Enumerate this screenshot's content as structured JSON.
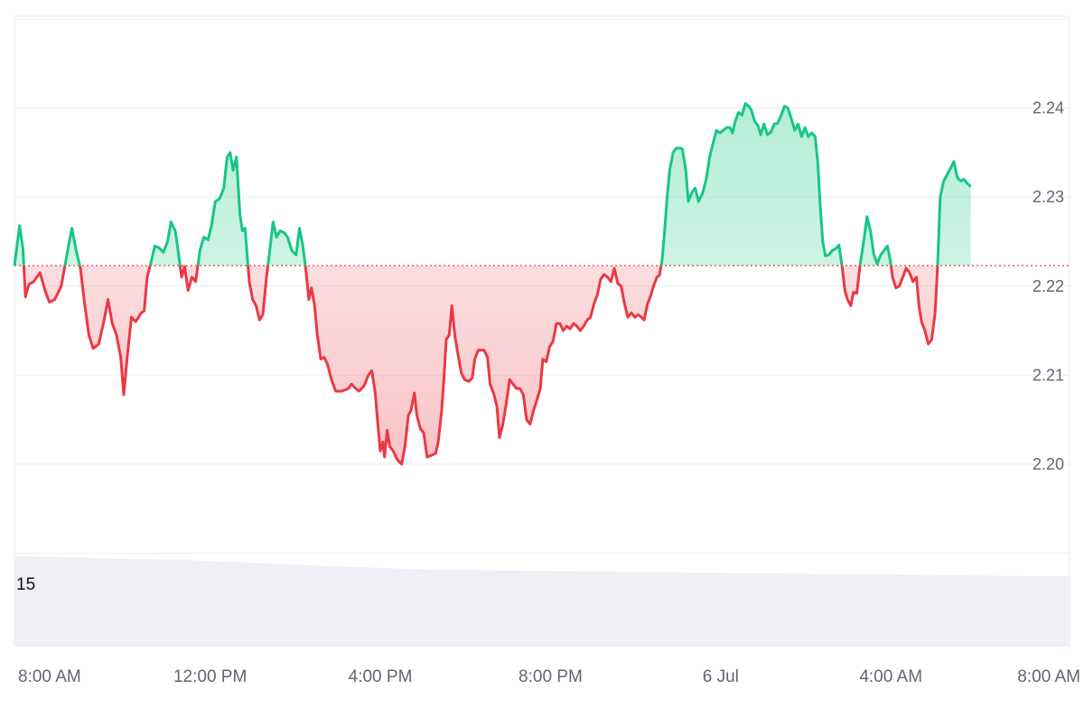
{
  "chart_data": {
    "type": "line",
    "baseline": 2.2223,
    "ylim": [
      2.18,
      2.25
    ],
    "grid": true,
    "colors": {
      "up": "#16c784",
      "down": "#ea3943",
      "up_fill": "#16c784",
      "down_fill": "#ea3943",
      "grid": "#eceef2",
      "volume": "#eef0f5",
      "baseline": "#ea3943"
    },
    "y_ticks": [
      {
        "value": 2.24,
        "label": "2.24"
      },
      {
        "value": 2.23,
        "label": "2.23"
      },
      {
        "value": 2.22,
        "label": "2.22"
      },
      {
        "value": 2.21,
        "label": "2.21"
      },
      {
        "value": 2.2,
        "label": "2.20"
      }
    ],
    "x_ticks": [
      {
        "t": 0.6,
        "label": "8:00 AM"
      },
      {
        "t": 4.6,
        "label": "12:00 PM"
      },
      {
        "t": 8.6,
        "label": "4:00 PM"
      },
      {
        "t": 12.6,
        "label": "8:00 PM"
      },
      {
        "t": 16.6,
        "label": "6 Jul"
      },
      {
        "t": 20.6,
        "label": "4:00 AM"
      },
      {
        "t": 24.6,
        "label": "8:00 AM"
      }
    ],
    "t_range": [
      0,
      24.8
    ],
    "volume": {
      "label": "15",
      "points": [
        [
          0,
          1.0
        ],
        [
          2,
          0.98
        ],
        [
          4,
          0.96
        ],
        [
          6,
          0.92
        ],
        [
          8,
          0.88
        ],
        [
          10,
          0.85
        ],
        [
          12,
          0.84
        ],
        [
          14,
          0.83
        ],
        [
          16,
          0.82
        ],
        [
          18,
          0.81
        ],
        [
          20,
          0.8
        ],
        [
          22,
          0.79
        ],
        [
          24,
          0.78
        ],
        [
          24.8,
          0.78
        ]
      ]
    },
    "series": [
      {
        "values": [
          [
            0.0,
            2.2223
          ],
          [
            0.06,
            2.2245
          ],
          [
            0.12,
            2.2268
          ],
          [
            0.2,
            2.2242
          ],
          [
            0.26,
            2.2188
          ],
          [
            0.34,
            2.2202
          ],
          [
            0.45,
            2.2205
          ],
          [
            0.6,
            2.2215
          ],
          [
            0.72,
            2.2195
          ],
          [
            0.82,
            2.2182
          ],
          [
            0.95,
            2.2185
          ],
          [
            1.1,
            2.22
          ],
          [
            1.25,
            2.224
          ],
          [
            1.35,
            2.2265
          ],
          [
            1.45,
            2.224
          ],
          [
            1.55,
            2.222
          ],
          [
            1.65,
            2.218
          ],
          [
            1.75,
            2.2145
          ],
          [
            1.85,
            2.213
          ],
          [
            1.98,
            2.2135
          ],
          [
            2.1,
            2.216
          ],
          [
            2.2,
            2.2185
          ],
          [
            2.3,
            2.2158
          ],
          [
            2.4,
            2.2145
          ],
          [
            2.5,
            2.212
          ],
          [
            2.57,
            2.2078
          ],
          [
            2.65,
            2.212
          ],
          [
            2.75,
            2.2165
          ],
          [
            2.85,
            2.216
          ],
          [
            2.98,
            2.217
          ],
          [
            3.05,
            2.2172
          ],
          [
            3.12,
            2.221
          ],
          [
            3.2,
            2.2225
          ],
          [
            3.3,
            2.2245
          ],
          [
            3.4,
            2.2243
          ],
          [
            3.5,
            2.2238
          ],
          [
            3.6,
            2.225
          ],
          [
            3.68,
            2.2272
          ],
          [
            3.78,
            2.2262
          ],
          [
            3.86,
            2.2235
          ],
          [
            3.93,
            2.221
          ],
          [
            4.0,
            2.2222
          ],
          [
            4.08,
            2.2195
          ],
          [
            4.17,
            2.221
          ],
          [
            4.26,
            2.2205
          ],
          [
            4.36,
            2.224
          ],
          [
            4.45,
            2.2255
          ],
          [
            4.55,
            2.2252
          ],
          [
            4.63,
            2.2268
          ],
          [
            4.72,
            2.2295
          ],
          [
            4.82,
            2.2298
          ],
          [
            4.92,
            2.231
          ],
          [
            5.0,
            2.2345
          ],
          [
            5.07,
            2.235
          ],
          [
            5.14,
            2.233
          ],
          [
            5.22,
            2.2345
          ],
          [
            5.3,
            2.228
          ],
          [
            5.36,
            2.2262
          ],
          [
            5.42,
            2.2265
          ],
          [
            5.48,
            2.2228
          ],
          [
            5.52,
            2.2205
          ],
          [
            5.6,
            2.2185
          ],
          [
            5.68,
            2.2178
          ],
          [
            5.76,
            2.2162
          ],
          [
            5.84,
            2.2168
          ],
          [
            5.92,
            2.2208
          ],
          [
            6.0,
            2.224
          ],
          [
            6.08,
            2.2272
          ],
          [
            6.16,
            2.2255
          ],
          [
            6.24,
            2.2262
          ],
          [
            6.34,
            2.226
          ],
          [
            6.42,
            2.2255
          ],
          [
            6.52,
            2.224
          ],
          [
            6.62,
            2.2235
          ],
          [
            6.7,
            2.2265
          ],
          [
            6.78,
            2.2245
          ],
          [
            6.85,
            2.2218
          ],
          [
            6.92,
            2.2185
          ],
          [
            6.98,
            2.2198
          ],
          [
            7.05,
            2.218
          ],
          [
            7.12,
            2.2145
          ],
          [
            7.2,
            2.2118
          ],
          [
            7.28,
            2.212
          ],
          [
            7.36,
            2.2112
          ],
          [
            7.45,
            2.2095
          ],
          [
            7.55,
            2.2082
          ],
          [
            7.7,
            2.2082
          ],
          [
            7.85,
            2.2085
          ],
          [
            7.92,
            2.209
          ],
          [
            8.02,
            2.2085
          ],
          [
            8.1,
            2.2082
          ],
          [
            8.22,
            2.2088
          ],
          [
            8.32,
            2.21
          ],
          [
            8.4,
            2.2105
          ],
          [
            8.48,
            2.208
          ],
          [
            8.55,
            2.204
          ],
          [
            8.6,
            2.2015
          ],
          [
            8.66,
            2.2025
          ],
          [
            8.7,
            2.2008
          ],
          [
            8.76,
            2.2038
          ],
          [
            8.82,
            2.202
          ],
          [
            8.9,
            2.2015
          ],
          [
            9.0,
            2.2005
          ],
          [
            9.1,
            2.2
          ],
          [
            9.18,
            2.202
          ],
          [
            9.26,
            2.2055
          ],
          [
            9.32,
            2.206
          ],
          [
            9.4,
            2.208
          ],
          [
            9.46,
            2.2055
          ],
          [
            9.54,
            2.204
          ],
          [
            9.62,
            2.2035
          ],
          [
            9.7,
            2.2008
          ],
          [
            9.8,
            2.201
          ],
          [
            9.9,
            2.2012
          ],
          [
            9.96,
            2.2025
          ],
          [
            10.04,
            2.206
          ],
          [
            10.1,
            2.21
          ],
          [
            10.15,
            2.214
          ],
          [
            10.22,
            2.2145
          ],
          [
            10.28,
            2.2178
          ],
          [
            10.35,
            2.2145
          ],
          [
            10.42,
            2.2125
          ],
          [
            10.5,
            2.2103
          ],
          [
            10.58,
            2.2095
          ],
          [
            10.68,
            2.2093
          ],
          [
            10.76,
            2.2097
          ],
          [
            10.82,
            2.2118
          ],
          [
            10.9,
            2.2128
          ],
          [
            11.04,
            2.2128
          ],
          [
            11.12,
            2.212
          ],
          [
            11.18,
            2.209
          ],
          [
            11.26,
            2.208
          ],
          [
            11.34,
            2.2065
          ],
          [
            11.4,
            2.203
          ],
          [
            11.48,
            2.2045
          ],
          [
            11.56,
            2.2068
          ],
          [
            11.64,
            2.2095
          ],
          [
            11.72,
            2.209
          ],
          [
            11.8,
            2.2085
          ],
          [
            11.88,
            2.2085
          ],
          [
            11.96,
            2.2078
          ],
          [
            12.04,
            2.205
          ],
          [
            12.12,
            2.2045
          ],
          [
            12.2,
            2.206
          ],
          [
            12.28,
            2.2072
          ],
          [
            12.36,
            2.2085
          ],
          [
            12.42,
            2.2118
          ],
          [
            12.5,
            2.2115
          ],
          [
            12.58,
            2.2132
          ],
          [
            12.66,
            2.2138
          ],
          [
            12.74,
            2.2158
          ],
          [
            12.82,
            2.2158
          ],
          [
            12.9,
            2.215
          ],
          [
            12.98,
            2.2155
          ],
          [
            13.06,
            2.2152
          ],
          [
            13.14,
            2.2158
          ],
          [
            13.22,
            2.2155
          ],
          [
            13.3,
            2.215
          ],
          [
            13.38,
            2.2155
          ],
          [
            13.46,
            2.2162
          ],
          [
            13.54,
            2.2165
          ],
          [
            13.62,
            2.218
          ],
          [
            13.7,
            2.219
          ],
          [
            13.78,
            2.2208
          ],
          [
            13.86,
            2.2213
          ],
          [
            13.94,
            2.221
          ],
          [
            14.02,
            2.2205
          ],
          [
            14.1,
            2.222
          ],
          [
            14.18,
            2.2203
          ],
          [
            14.26,
            2.22
          ],
          [
            14.34,
            2.218
          ],
          [
            14.42,
            2.2165
          ],
          [
            14.5,
            2.217
          ],
          [
            14.58,
            2.2165
          ],
          [
            14.66,
            2.2168
          ],
          [
            14.74,
            2.2165
          ],
          [
            14.8,
            2.2162
          ],
          [
            14.88,
            2.218
          ],
          [
            14.96,
            2.219
          ],
          [
            15.02,
            2.22
          ],
          [
            15.1,
            2.221
          ],
          [
            15.16,
            2.2212
          ],
          [
            15.22,
            2.2228
          ],
          [
            15.28,
            2.226
          ],
          [
            15.34,
            2.23
          ],
          [
            15.4,
            2.233
          ],
          [
            15.48,
            2.235
          ],
          [
            15.56,
            2.2355
          ],
          [
            15.64,
            2.2355
          ],
          [
            15.7,
            2.2354
          ],
          [
            15.78,
            2.233
          ],
          [
            15.84,
            2.2295
          ],
          [
            15.92,
            2.2305
          ],
          [
            16.0,
            2.231
          ],
          [
            16.08,
            2.2295
          ],
          [
            16.18,
            2.2305
          ],
          [
            16.26,
            2.232
          ],
          [
            16.34,
            2.2345
          ],
          [
            16.42,
            2.236
          ],
          [
            16.5,
            2.2375
          ],
          [
            16.58,
            2.2372
          ],
          [
            16.66,
            2.2375
          ],
          [
            16.74,
            2.2378
          ],
          [
            16.82,
            2.2378
          ],
          [
            16.88,
            2.2372
          ],
          [
            16.94,
            2.2385
          ],
          [
            17.02,
            2.2395
          ],
          [
            17.1,
            2.2392
          ],
          [
            17.18,
            2.2405
          ],
          [
            17.26,
            2.2402
          ],
          [
            17.32,
            2.2398
          ],
          [
            17.4,
            2.2385
          ],
          [
            17.48,
            2.238
          ],
          [
            17.54,
            2.237
          ],
          [
            17.62,
            2.2382
          ],
          [
            17.7,
            2.237
          ],
          [
            17.78,
            2.2373
          ],
          [
            17.86,
            2.2382
          ],
          [
            17.94,
            2.2383
          ],
          [
            18.02,
            2.2392
          ],
          [
            18.1,
            2.2402
          ],
          [
            18.18,
            2.24
          ],
          [
            18.26,
            2.2388
          ],
          [
            18.34,
            2.2375
          ],
          [
            18.42,
            2.2382
          ],
          [
            18.5,
            2.2368
          ],
          [
            18.58,
            2.2378
          ],
          [
            18.66,
            2.2368
          ],
          [
            18.74,
            2.2372
          ],
          [
            18.82,
            2.2368
          ],
          [
            18.88,
            2.234
          ],
          [
            18.94,
            2.229
          ],
          [
            19.0,
            2.225
          ],
          [
            19.06,
            2.2234
          ],
          [
            19.14,
            2.2235
          ],
          [
            19.22,
            2.224
          ],
          [
            19.3,
            2.2242
          ],
          [
            19.38,
            2.2246
          ],
          [
            19.46,
            2.222
          ],
          [
            19.52,
            2.2195
          ],
          [
            19.58,
            2.2185
          ],
          [
            19.66,
            2.2178
          ],
          [
            19.72,
            2.2193
          ],
          [
            19.8,
            2.2192
          ],
          [
            19.88,
            2.2225
          ],
          [
            19.96,
            2.225
          ],
          [
            20.04,
            2.2278
          ],
          [
            20.12,
            2.2262
          ],
          [
            20.2,
            2.2235
          ],
          [
            20.28,
            2.2225
          ],
          [
            20.36,
            2.2235
          ],
          [
            20.44,
            2.224
          ],
          [
            20.52,
            2.2245
          ],
          [
            20.58,
            2.223
          ],
          [
            20.64,
            2.221
          ],
          [
            20.72,
            2.2198
          ],
          [
            20.8,
            2.22
          ],
          [
            20.88,
            2.221
          ],
          [
            20.96,
            2.222
          ],
          [
            21.04,
            2.2215
          ],
          [
            21.12,
            2.2205
          ],
          [
            21.2,
            2.221
          ],
          [
            21.26,
            2.2178
          ],
          [
            21.32,
            2.216
          ],
          [
            21.4,
            2.215
          ],
          [
            21.48,
            2.2135
          ],
          [
            21.56,
            2.214
          ],
          [
            21.64,
            2.217
          ],
          [
            21.7,
            2.2225
          ],
          [
            21.76,
            2.23
          ],
          [
            21.84,
            2.2318
          ],
          [
            21.92,
            2.2325
          ],
          [
            22.0,
            2.2332
          ],
          [
            22.08,
            2.234
          ],
          [
            22.16,
            2.2322
          ],
          [
            22.24,
            2.2318
          ],
          [
            22.32,
            2.232
          ],
          [
            22.4,
            2.2315
          ],
          [
            22.48,
            2.2312
          ]
        ]
      }
    ]
  }
}
